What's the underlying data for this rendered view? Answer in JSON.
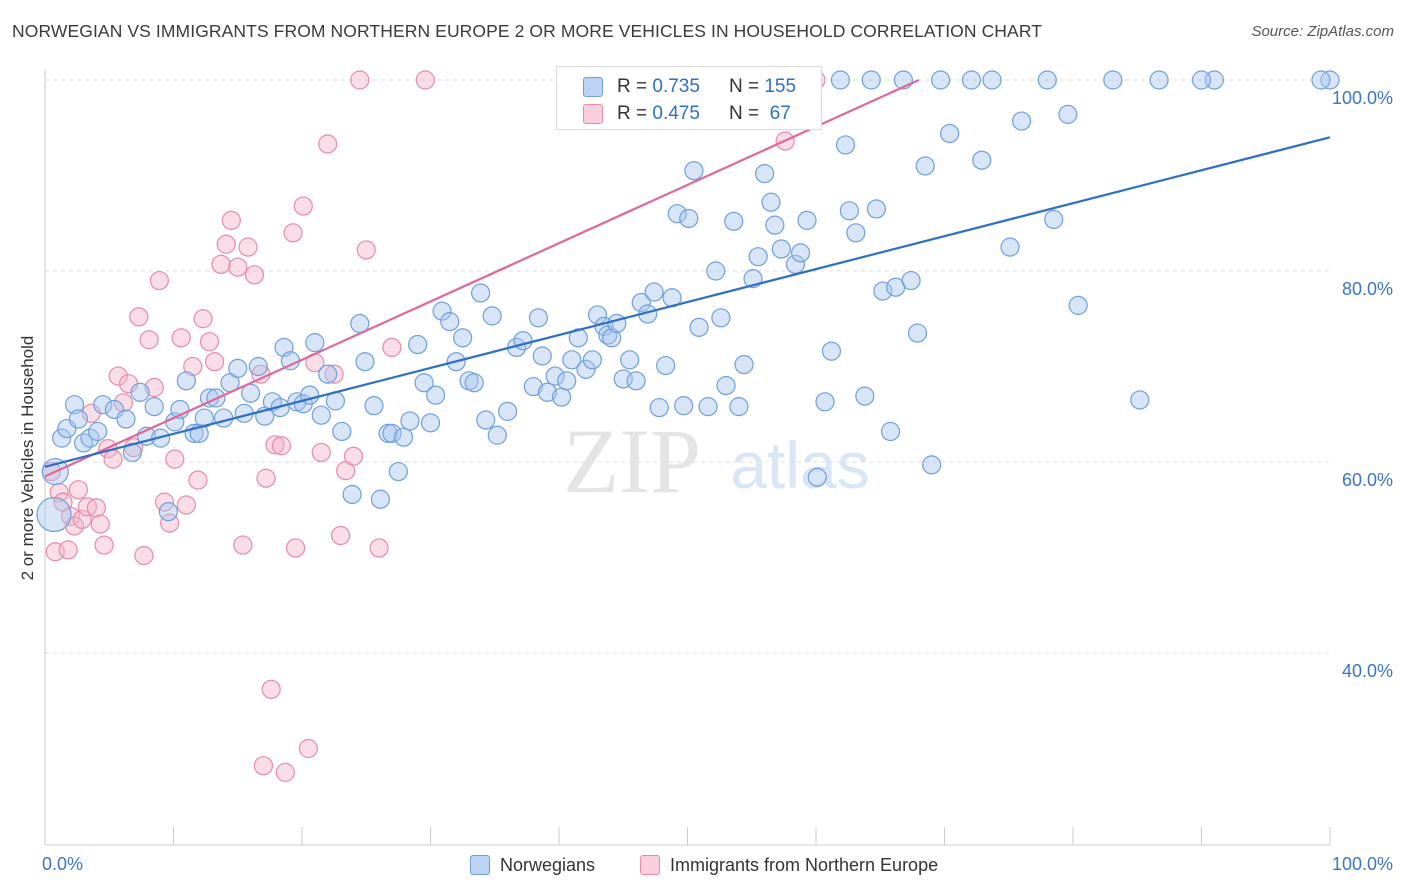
{
  "title": "NORWEGIAN VS IMMIGRANTS FROM NORTHERN EUROPE 2 OR MORE VEHICLES IN HOUSEHOLD CORRELATION CHART",
  "source": "Source: ZipAtlas.com",
  "watermark": {
    "zip": "ZIP",
    "atlas": "atlas"
  },
  "legend": {
    "rows": [
      {
        "r_label": "R =",
        "r_value": "0.735",
        "n_label": "N =",
        "n_value": "155"
      },
      {
        "r_label": "R =",
        "r_value": "0.475",
        "n_label": "N =",
        "n_value": " 67"
      }
    ]
  },
  "bottom_legend": [
    "Norwegians",
    "Immigrants from Northern Europe"
  ],
  "colors": {
    "blue_fill": "#a9c6ee",
    "blue_stroke": "#6f9fdc",
    "blue_line": "#2f6fc6",
    "pink_fill": "#f5b6c9",
    "pink_stroke": "#e88aa8",
    "pink_line": "#e0679a",
    "tick_text": "#3a74c9",
    "grid": "#dddddd"
  },
  "chart_data": {
    "type": "scatter",
    "title": "NORWEGIAN VS IMMIGRANTS FROM NORTHERN EUROPE 2 OR MORE VEHICLES IN HOUSEHOLD CORRELATION CHART",
    "xlabel": "",
    "ylabel": "2 or more Vehicles in Household",
    "xlim": [
      0,
      100
    ],
    "ylim": [
      18,
      102
    ],
    "x_tick_labels": [
      "0.0%",
      "100.0%"
    ],
    "y_ticks": [
      40,
      60,
      80,
      100
    ],
    "y_tick_labels": [
      "40.0%",
      "60.0%",
      "80.0%",
      "100.0%"
    ],
    "grid": true,
    "legend_position": "top-center",
    "series": [
      {
        "name": "Norwegians",
        "r": 0.735,
        "n": 155,
        "trend": {
          "x": [
            0,
            100
          ],
          "y": [
            59.5,
            94.0
          ]
        },
        "points": [
          [
            0.7,
            54.5
          ],
          [
            0.8,
            59
          ],
          [
            1.3,
            62.5
          ],
          [
            1.7,
            63.5
          ],
          [
            2.3,
            66
          ],
          [
            2.6,
            64.5
          ],
          [
            3.0,
            62
          ],
          [
            3.5,
            62.5
          ],
          [
            4.1,
            63.2
          ],
          [
            4.5,
            66
          ],
          [
            5.4,
            65.5
          ],
          [
            6.3,
            64.5
          ],
          [
            6.8,
            61
          ],
          [
            7.4,
            67.3
          ],
          [
            7.9,
            62.7
          ],
          [
            8.5,
            65.8
          ],
          [
            9.0,
            62.5
          ],
          [
            9.6,
            54.8
          ],
          [
            10.1,
            64.2
          ],
          [
            10.5,
            65.5
          ],
          [
            11.0,
            68.5
          ],
          [
            11.6,
            63.0
          ],
          [
            12.0,
            63.0
          ],
          [
            12.4,
            64.6
          ],
          [
            12.8,
            66.7
          ],
          [
            13.3,
            66.7
          ],
          [
            13.9,
            64.6
          ],
          [
            14.4,
            68.3
          ],
          [
            15.0,
            69.8
          ],
          [
            15.5,
            65.1
          ],
          [
            16.0,
            67.2
          ],
          [
            16.6,
            70.0
          ],
          [
            17.1,
            64.8
          ],
          [
            17.7,
            66.3
          ],
          [
            18.3,
            65.7
          ],
          [
            18.6,
            72.0
          ],
          [
            19.1,
            70.6
          ],
          [
            19.6,
            66.3
          ],
          [
            20.1,
            66.1
          ],
          [
            20.6,
            67.0
          ],
          [
            21.0,
            72.5
          ],
          [
            21.5,
            64.9
          ],
          [
            22.0,
            69.2
          ],
          [
            22.6,
            66.4
          ],
          [
            23.1,
            63.2
          ],
          [
            23.9,
            56.6
          ],
          [
            24.5,
            74.5
          ],
          [
            24.9,
            70.5
          ],
          [
            25.6,
            65.9
          ],
          [
            26.1,
            56.1
          ],
          [
            26.7,
            63.0
          ],
          [
            27.0,
            63.0
          ],
          [
            27.5,
            59.0
          ],
          [
            27.9,
            62.6
          ],
          [
            28.4,
            64.3
          ],
          [
            29.0,
            72.3
          ],
          [
            29.5,
            68.3
          ],
          [
            30.0,
            64.1
          ],
          [
            30.4,
            67.0
          ],
          [
            30.9,
            75.8
          ],
          [
            31.5,
            74.7
          ],
          [
            32.0,
            70.5
          ],
          [
            32.5,
            73.0
          ],
          [
            33.0,
            68.5
          ],
          [
            33.4,
            68.3
          ],
          [
            33.9,
            77.7
          ],
          [
            34.3,
            64.4
          ],
          [
            34.8,
            75.3
          ],
          [
            35.2,
            62.8
          ],
          [
            36.0,
            65.3
          ],
          [
            36.7,
            72.0
          ],
          [
            37.2,
            72.7
          ],
          [
            38.0,
            67.9
          ],
          [
            38.4,
            75.1
          ],
          [
            38.7,
            71.1
          ],
          [
            39.1,
            67.3
          ],
          [
            39.7,
            69.0
          ],
          [
            40.2,
            66.8
          ],
          [
            40.6,
            68.5
          ],
          [
            41.0,
            70.7
          ],
          [
            41.5,
            73.0
          ],
          [
            42.1,
            69.7
          ],
          [
            42.6,
            70.7
          ],
          [
            43.0,
            75.4
          ],
          [
            43.5,
            74.2
          ],
          [
            43.8,
            73.3
          ],
          [
            44.1,
            73.0
          ],
          [
            44.5,
            74.5
          ],
          [
            45.0,
            68.7
          ],
          [
            45.5,
            70.7
          ],
          [
            46.0,
            68.5
          ],
          [
            46.4,
            76.7
          ],
          [
            46.9,
            75.5
          ],
          [
            47.4,
            77.8
          ],
          [
            47.8,
            65.7
          ],
          [
            48.3,
            70.1
          ],
          [
            48.8,
            77.2
          ],
          [
            49.2,
            86.0
          ],
          [
            49.7,
            65.9
          ],
          [
            50.1,
            85.5
          ],
          [
            50.5,
            90.5
          ],
          [
            50.9,
            74.1
          ],
          [
            51.6,
            65.8
          ],
          [
            52.2,
            80.0
          ],
          [
            52.6,
            75.1
          ],
          [
            53.0,
            68.0
          ],
          [
            53.6,
            85.2
          ],
          [
            54.0,
            65.8
          ],
          [
            54.4,
            70.2
          ],
          [
            55.1,
            79.2
          ],
          [
            55.5,
            81.5
          ],
          [
            56.0,
            90.2
          ],
          [
            56.5,
            87.2
          ],
          [
            56.8,
            84.8
          ],
          [
            57.3,
            82.3
          ],
          [
            58.0,
            100
          ],
          [
            58.4,
            80.7
          ],
          [
            58.8,
            81.9
          ],
          [
            59.3,
            85.3
          ],
          [
            60.1,
            58.4
          ],
          [
            60.7,
            66.3
          ],
          [
            61.2,
            71.6
          ],
          [
            61.9,
            100
          ],
          [
            62.3,
            93.2
          ],
          [
            62.6,
            86.3
          ],
          [
            63.1,
            84.0
          ],
          [
            63.8,
            66.9
          ],
          [
            64.3,
            100
          ],
          [
            64.7,
            86.5
          ],
          [
            65.2,
            77.9
          ],
          [
            65.8,
            63.2
          ],
          [
            66.2,
            78.3
          ],
          [
            66.8,
            100
          ],
          [
            67.4,
            79.0
          ],
          [
            67.9,
            73.5
          ],
          [
            68.5,
            91.0
          ],
          [
            69.0,
            59.7
          ],
          [
            69.7,
            100
          ],
          [
            70.4,
            94.4
          ],
          [
            72.1,
            100
          ],
          [
            72.9,
            91.6
          ],
          [
            73.7,
            100
          ],
          [
            75.1,
            82.5
          ],
          [
            76.0,
            95.7
          ],
          [
            78.0,
            100
          ],
          [
            78.5,
            85.4
          ],
          [
            79.6,
            96.4
          ],
          [
            80.4,
            76.4
          ],
          [
            83.1,
            100
          ],
          [
            85.2,
            66.5
          ],
          [
            86.7,
            100
          ],
          [
            91.0,
            100
          ],
          [
            100,
            100
          ],
          [
            99.3,
            100
          ],
          [
            90.0,
            100
          ]
        ]
      },
      {
        "name": "Immigrants from Northern Europe",
        "r": 0.475,
        "n": 67,
        "trend": {
          "x": [
            0,
            68
          ],
          "y": [
            58.5,
            100
          ]
        },
        "points": [
          [
            0.5,
            59
          ],
          [
            0.8,
            50.6
          ],
          [
            1.1,
            56.8
          ],
          [
            1.4,
            55.8
          ],
          [
            1.8,
            50.8
          ],
          [
            2.0,
            54.3
          ],
          [
            2.3,
            53.3
          ],
          [
            2.6,
            57.1
          ],
          [
            2.9,
            54.0
          ],
          [
            3.3,
            55.3
          ],
          [
            3.6,
            65.1
          ],
          [
            4.0,
            55.2
          ],
          [
            4.3,
            53.5
          ],
          [
            4.6,
            51.3
          ],
          [
            4.9,
            61.4
          ],
          [
            5.3,
            60.3
          ],
          [
            5.7,
            69.0
          ],
          [
            6.1,
            66.2
          ],
          [
            6.5,
            68.2
          ],
          [
            6.9,
            61.5
          ],
          [
            7.3,
            75.2
          ],
          [
            7.7,
            50.2
          ],
          [
            8.1,
            72.8
          ],
          [
            8.5,
            67.8
          ],
          [
            8.9,
            79.0
          ],
          [
            9.3,
            55.8
          ],
          [
            9.7,
            53.6
          ],
          [
            10.1,
            60.3
          ],
          [
            10.6,
            73.0
          ],
          [
            11.0,
            55.5
          ],
          [
            11.5,
            70.0
          ],
          [
            11.9,
            58.1
          ],
          [
            12.3,
            75.0
          ],
          [
            12.8,
            72.6
          ],
          [
            13.2,
            70.5
          ],
          [
            13.7,
            80.7
          ],
          [
            14.1,
            82.8
          ],
          [
            14.5,
            85.3
          ],
          [
            15.0,
            80.4
          ],
          [
            15.4,
            51.3
          ],
          [
            15.8,
            82.5
          ],
          [
            16.3,
            79.6
          ],
          [
            16.8,
            69.2
          ],
          [
            17.2,
            58.3
          ],
          [
            17.6,
            36.2
          ],
          [
            17.9,
            61.8
          ],
          [
            18.4,
            61.7
          ],
          [
            18.7,
            27.5
          ],
          [
            19.3,
            84.0
          ],
          [
            19.5,
            51.0
          ],
          [
            20.1,
            86.8
          ],
          [
            20.5,
            30.0
          ],
          [
            21.0,
            70.4
          ],
          [
            21.5,
            61.0
          ],
          [
            22.0,
            93.3
          ],
          [
            22.5,
            69.2
          ],
          [
            23.0,
            52.3
          ],
          [
            23.4,
            59.1
          ],
          [
            24.0,
            60.6
          ],
          [
            24.5,
            100
          ],
          [
            25.0,
            82.2
          ],
          [
            26.0,
            51.0
          ],
          [
            27.0,
            72.0
          ],
          [
            29.6,
            100
          ],
          [
            57.6,
            93.6
          ],
          [
            60.0,
            100
          ],
          [
            17.0,
            28.2
          ]
        ]
      }
    ]
  }
}
